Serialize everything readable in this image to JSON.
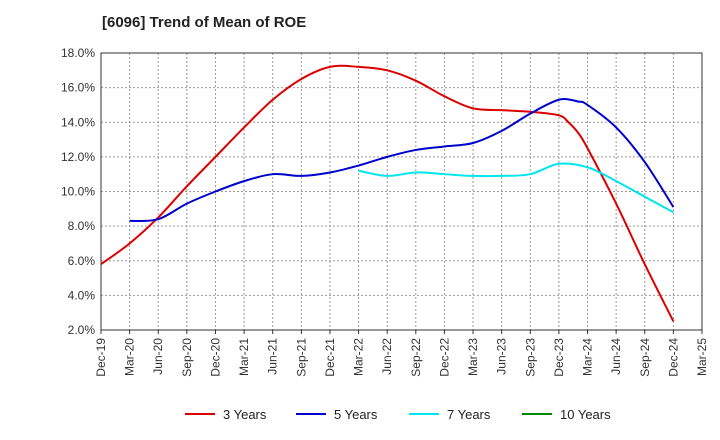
{
  "chart_data": {
    "type": "line",
    "title": "[6096]  Trend of Mean of ROE",
    "ylim": [
      2.0,
      18.0
    ],
    "y_ticks": [
      "2.0%",
      "4.0%",
      "6.0%",
      "8.0%",
      "10.0%",
      "12.0%",
      "14.0%",
      "16.0%",
      "18.0%"
    ],
    "y_tick_values": [
      2,
      4,
      6,
      8,
      10,
      12,
      14,
      16,
      18
    ],
    "x_ticks": [
      "Dec-19",
      "Mar-20",
      "Jun-20",
      "Sep-20",
      "Dec-20",
      "Mar-21",
      "Jun-21",
      "Sep-21",
      "Dec-21",
      "Mar-22",
      "Jun-22",
      "Sep-22",
      "Dec-22",
      "Mar-23",
      "Jun-23",
      "Sep-23",
      "Dec-23",
      "Mar-24",
      "Jun-24",
      "Sep-24",
      "Dec-24",
      "Mar-25"
    ],
    "grid": true,
    "legend_position": "bottom",
    "series": [
      {
        "name": "3 Years",
        "color": "#dd0000",
        "points": [
          [
            "Dec-19",
            5.8
          ],
          [
            "Mar-20",
            7.0
          ],
          [
            "Jun-20",
            8.5
          ],
          [
            "Sep-20",
            10.3
          ],
          [
            "Dec-20",
            12.0
          ],
          [
            "Mar-21",
            13.7
          ],
          [
            "Jun-21",
            15.3
          ],
          [
            "Sep-21",
            16.5
          ],
          [
            "Dec-21",
            17.2
          ],
          [
            "Mar-22",
            17.2
          ],
          [
            "Jun-22",
            17.0
          ],
          [
            "Sep-22",
            16.4
          ],
          [
            "Dec-22",
            15.5
          ],
          [
            "Mar-23",
            14.8
          ],
          [
            "Jun-23",
            14.7
          ],
          [
            "Sep-23",
            14.6
          ],
          [
            "Dec-23",
            14.4
          ],
          [
            "Jan-24",
            14.0
          ],
          [
            "Feb-24",
            13.4
          ],
          [
            "Mar-24",
            12.5
          ],
          [
            "Jun-24",
            9.3
          ],
          [
            "Sep-24",
            5.8
          ],
          [
            "Dec-24",
            2.5
          ]
        ]
      },
      {
        "name": "5 Years",
        "color": "#0000cc",
        "points": [
          [
            "Mar-20",
            8.3
          ],
          [
            "Jun-20",
            8.4
          ],
          [
            "Sep-20",
            9.3
          ],
          [
            "Dec-20",
            10.0
          ],
          [
            "Mar-21",
            10.6
          ],
          [
            "Jun-21",
            11.0
          ],
          [
            "Sep-21",
            10.9
          ],
          [
            "Dec-21",
            11.1
          ],
          [
            "Mar-22",
            11.5
          ],
          [
            "Jun-22",
            12.0
          ],
          [
            "Sep-22",
            12.4
          ],
          [
            "Dec-22",
            12.6
          ],
          [
            "Mar-23",
            12.8
          ],
          [
            "Jun-23",
            13.5
          ],
          [
            "Sep-23",
            14.5
          ],
          [
            "Dec-23",
            15.3
          ],
          [
            "Feb-24",
            15.2
          ],
          [
            "Mar-24",
            15.0
          ],
          [
            "Jun-24",
            13.7
          ],
          [
            "Sep-24",
            11.7
          ],
          [
            "Dec-24",
            9.1
          ]
        ]
      },
      {
        "name": "7 Years",
        "color": "#00e5ee",
        "points": [
          [
            "Mar-22",
            11.2
          ],
          [
            "Jun-22",
            10.9
          ],
          [
            "Sep-22",
            11.1
          ],
          [
            "Dec-22",
            11.0
          ],
          [
            "Mar-23",
            10.9
          ],
          [
            "Jun-23",
            10.9
          ],
          [
            "Sep-23",
            11.0
          ],
          [
            "Dec-23",
            11.6
          ],
          [
            "Mar-24",
            11.4
          ],
          [
            "Jun-24",
            10.6
          ],
          [
            "Sep-24",
            9.7
          ],
          [
            "Dec-24",
            8.8
          ]
        ]
      },
      {
        "name": "10 Years",
        "color": "#008800",
        "points": []
      }
    ]
  }
}
